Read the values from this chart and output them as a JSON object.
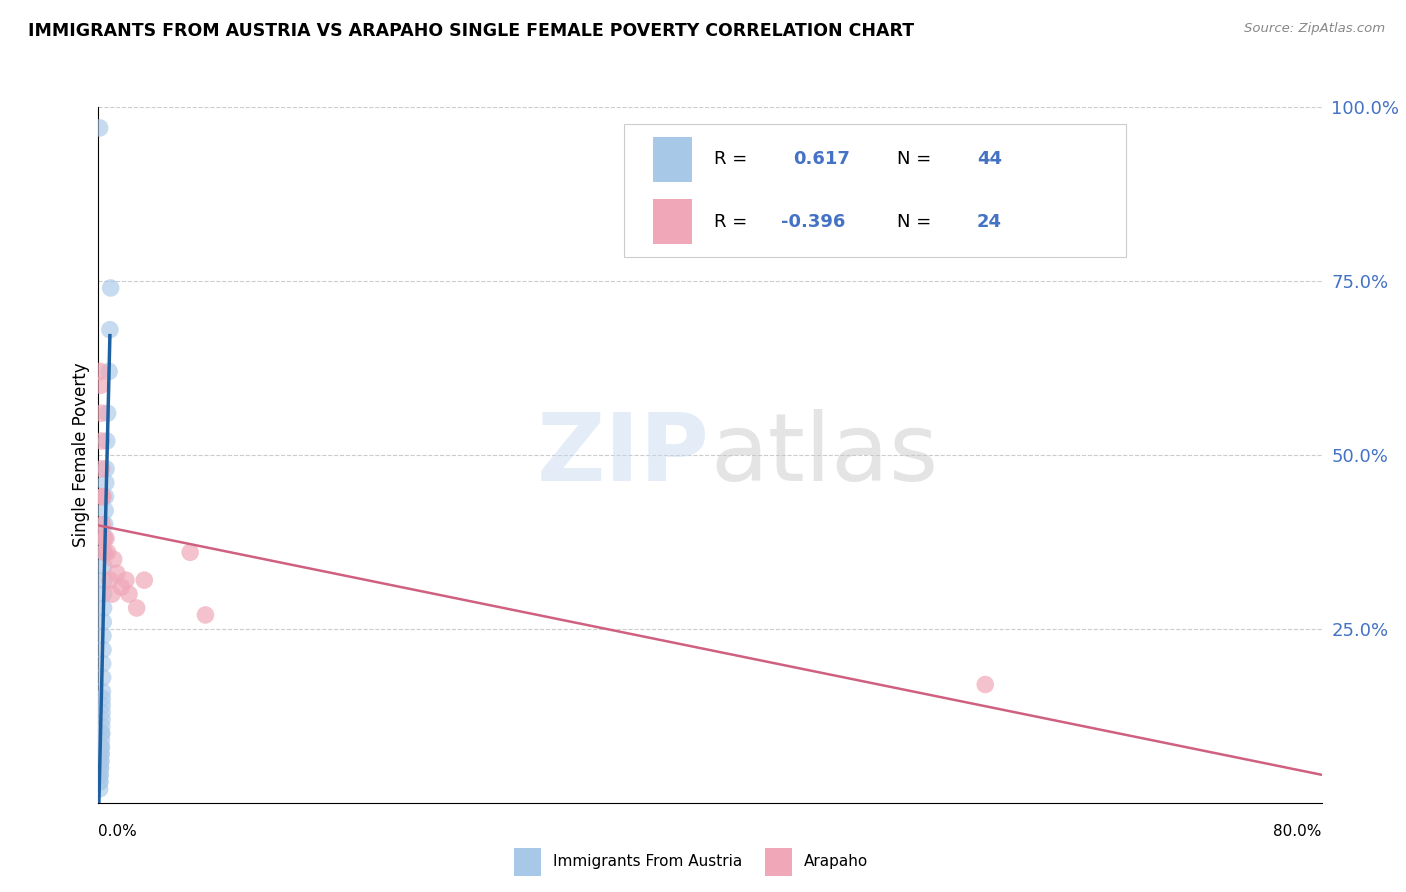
{
  "title": "IMMIGRANTS FROM AUSTRIA VS ARAPAHO SINGLE FEMALE POVERTY CORRELATION CHART",
  "source": "Source: ZipAtlas.com",
  "ylabel": "Single Female Poverty",
  "r1": "0.617",
  "n1": "44",
  "r2": "-0.396",
  "n2": "24",
  "color_blue": "#a8c8e8",
  "color_blue_line": "#2060a0",
  "color_pink": "#f0a8b8",
  "color_pink_line": "#d06080",
  "color_right_axis": "#4472c4",
  "background_color": "#ffffff",
  "grid_color": "#cccccc",
  "austria_x": [
    0.0008,
    0.0008,
    0.001,
    0.001,
    0.0012,
    0.0012,
    0.0014,
    0.0015,
    0.0016,
    0.0016,
    0.0018,
    0.0018,
    0.002,
    0.002,
    0.002,
    0.0022,
    0.0022,
    0.0024,
    0.0024,
    0.0025,
    0.0025,
    0.0026,
    0.0028,
    0.0028,
    0.003,
    0.003,
    0.0032,
    0.0034,
    0.0034,
    0.0036,
    0.0036,
    0.0038,
    0.004,
    0.0042,
    0.0044,
    0.0046,
    0.0048,
    0.005,
    0.0055,
    0.006,
    0.007,
    0.0075,
    0.008,
    0.0008
  ],
  "austria_y": [
    0.02,
    0.03,
    0.03,
    0.04,
    0.04,
    0.05,
    0.05,
    0.06,
    0.06,
    0.07,
    0.07,
    0.08,
    0.08,
    0.09,
    0.1,
    0.1,
    0.11,
    0.12,
    0.13,
    0.14,
    0.15,
    0.16,
    0.18,
    0.2,
    0.22,
    0.24,
    0.26,
    0.28,
    0.3,
    0.32,
    0.34,
    0.36,
    0.38,
    0.4,
    0.42,
    0.44,
    0.46,
    0.48,
    0.52,
    0.56,
    0.62,
    0.68,
    0.74,
    0.97
  ],
  "arapaho_x": [
    0.0012,
    0.0015,
    0.0018,
    0.002,
    0.0022,
    0.0025,
    0.0028,
    0.003,
    0.0035,
    0.004,
    0.005,
    0.006,
    0.0075,
    0.009,
    0.01,
    0.012,
    0.015,
    0.018,
    0.02,
    0.025,
    0.03,
    0.06,
    0.07,
    0.58
  ],
  "arapaho_y": [
    0.62,
    0.6,
    0.56,
    0.52,
    0.48,
    0.44,
    0.4,
    0.44,
    0.38,
    0.36,
    0.38,
    0.36,
    0.32,
    0.3,
    0.35,
    0.33,
    0.31,
    0.32,
    0.3,
    0.28,
    0.32,
    0.36,
    0.27,
    0.17
  ],
  "xlim_min": 0.0,
  "xlim_max": 0.8,
  "ylim_min": 0.0,
  "ylim_max": 1.0,
  "yticks": [
    0.25,
    0.5,
    0.75,
    1.0
  ],
  "ytick_labels": [
    "25.0%",
    "50.0%",
    "75.0%",
    "100.0%"
  ]
}
